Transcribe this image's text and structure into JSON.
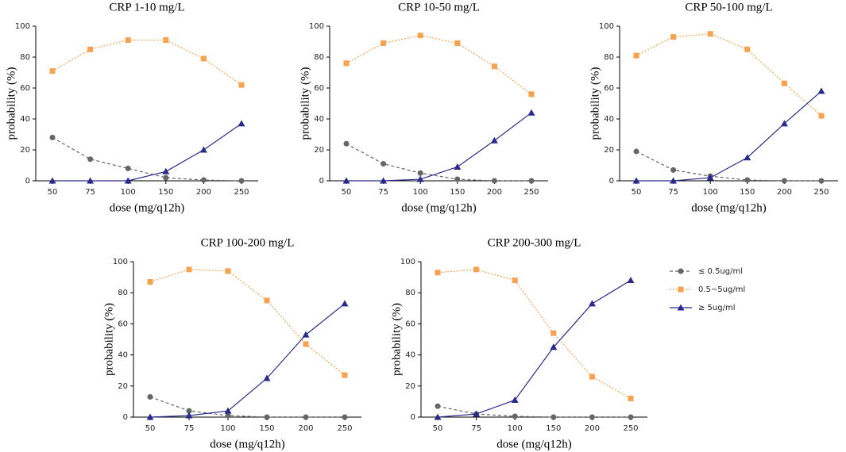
{
  "legend": [
    {
      "name": "≤ 0.5ug/ml",
      "color": "#666666",
      "marker": "circle",
      "dash": "4,3"
    },
    {
      "name": "0.5~5ug/ml",
      "color": "#f7a24f",
      "marker": "square",
      "dash": "2,2"
    },
    {
      "name": "≥ 5ug/ml",
      "color": "#2a2a8c",
      "marker": "triangle",
      "dash": "none"
    }
  ],
  "chart_data": [
    {
      "type": "line",
      "title": "CRP 1-10 mg/L",
      "x_label": "dose (mg/q12h)",
      "y_label": "probability (%)",
      "categories": [
        50,
        75,
        100,
        150,
        200,
        250
      ],
      "ylim": [
        0,
        100
      ],
      "yticks": [
        0,
        20,
        40,
        60,
        80,
        100
      ],
      "series": [
        {
          "values": [
            28,
            14,
            8,
            2,
            0.5,
            0
          ]
        },
        {
          "values": [
            71,
            85,
            91,
            91,
            79,
            62
          ]
        },
        {
          "values": [
            0,
            0,
            0,
            6,
            20,
            37
          ]
        }
      ]
    },
    {
      "type": "line",
      "title": "CRP 10-50 mg/L",
      "x_label": "dose (mg/q12h)",
      "y_label": "probability (%)",
      "categories": [
        50,
        75,
        100,
        150,
        200,
        250
      ],
      "ylim": [
        0,
        100
      ],
      "yticks": [
        0,
        20,
        40,
        60,
        80,
        100
      ],
      "series": [
        {
          "values": [
            24,
            11,
            5,
            1,
            0,
            0
          ]
        },
        {
          "values": [
            76,
            89,
            94,
            89,
            74,
            56
          ]
        },
        {
          "values": [
            0,
            0,
            1,
            9,
            26,
            44
          ]
        }
      ]
    },
    {
      "type": "line",
      "title": "CRP 50-100 mg/L",
      "x_label": "dose (mg/q12h)",
      "y_label": "probability (%)",
      "categories": [
        50,
        75,
        100,
        150,
        200,
        250
      ],
      "ylim": [
        0,
        100
      ],
      "yticks": [
        0,
        20,
        40,
        60,
        80,
        100
      ],
      "series": [
        {
          "values": [
            19,
            7,
            3,
            0.5,
            0,
            0
          ]
        },
        {
          "values": [
            81,
            93,
            95,
            85,
            63,
            42
          ]
        },
        {
          "values": [
            0,
            0,
            2,
            15,
            37,
            58
          ]
        }
      ]
    },
    {
      "type": "line",
      "title": "CRP 100-200 mg/L",
      "x_label": "dose (mg/q12h)",
      "y_label": "probability (%)",
      "categories": [
        50,
        75,
        100,
        150,
        200,
        250
      ],
      "ylim": [
        0,
        100
      ],
      "yticks": [
        0,
        20,
        40,
        60,
        80,
        100
      ],
      "series": [
        {
          "values": [
            13,
            4,
            1,
            0,
            0,
            0
          ]
        },
        {
          "values": [
            87,
            95,
            94,
            75,
            47,
            27
          ]
        },
        {
          "values": [
            0,
            1,
            4,
            25,
            53,
            73
          ]
        }
      ]
    },
    {
      "type": "line",
      "title": "CRP 200-300 mg/L",
      "x_label": "dose (mg/q12h)",
      "y_label": "probability (%)",
      "categories": [
        50,
        75,
        100,
        150,
        200,
        250
      ],
      "ylim": [
        0,
        100
      ],
      "yticks": [
        0,
        20,
        40,
        60,
        80,
        100
      ],
      "series": [
        {
          "values": [
            7,
            2,
            0.5,
            0,
            0,
            0
          ]
        },
        {
          "values": [
            93,
            95,
            88,
            54,
            26,
            12
          ]
        },
        {
          "values": [
            0,
            2,
            11,
            45,
            73,
            88
          ]
        }
      ]
    }
  ]
}
